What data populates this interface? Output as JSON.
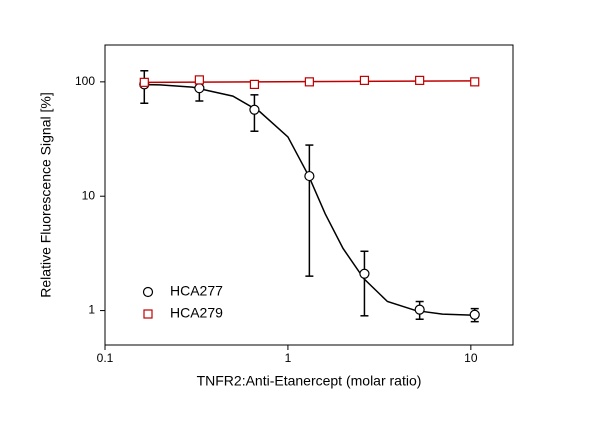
{
  "chart_data": {
    "type": "scatter",
    "xlabel": "TNFR2:Anti-Etanercept (molar ratio)",
    "ylabel": "Relative Fluorescence Signal [%]",
    "xscale": "log",
    "yscale": "log",
    "xlim": [
      0.1,
      17
    ],
    "ylim": [
      0.5,
      210
    ],
    "xticks": [
      0.1,
      1,
      10
    ],
    "yticks": [
      1,
      10,
      100
    ],
    "legend": "lower left",
    "series": [
      {
        "name": "HCA277",
        "color": "#000000",
        "marker": "circle",
        "x": [
          0.164,
          0.328,
          0.656,
          1.31,
          2.62,
          5.25,
          10.5
        ],
        "values": [
          95,
          88,
          57,
          15,
          2.1,
          1.02,
          0.92
        ],
        "errors": [
          30,
          20,
          20,
          13,
          1.2,
          0.18,
          0.12
        ],
        "fit": {
          "x": [
            0.164,
            0.2,
            0.3,
            0.5,
            0.7,
            1,
            1.3,
            1.6,
            2,
            2.6,
            3.5,
            5,
            7,
            10.5
          ],
          "values": [
            94.5,
            94,
            90,
            75,
            55,
            33,
            15,
            7,
            3.5,
            1.9,
            1.2,
            1.0,
            0.93,
            0.91
          ]
        }
      },
      {
        "name": "HCA279",
        "color": "#c00000",
        "marker": "square",
        "x": [
          0.164,
          0.328,
          0.656,
          1.31,
          2.62,
          5.25,
          10.5
        ],
        "values": [
          99,
          104,
          95,
          100,
          103,
          103,
          100
        ],
        "errors": [
          6,
          8,
          5,
          5,
          4,
          4,
          4
        ],
        "fit": {
          "x": [
            0.164,
            10.5
          ],
          "values": [
            99,
            102
          ]
        }
      }
    ]
  }
}
